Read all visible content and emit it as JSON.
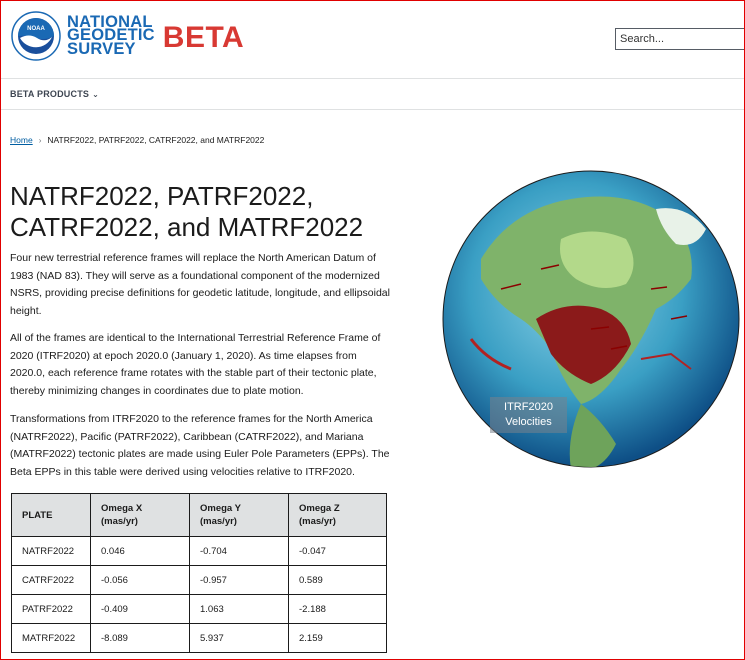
{
  "header": {
    "org_lines": [
      "NATIONAL",
      "GEODETIC",
      "SURVEY"
    ],
    "beta_label": "BETA",
    "seal_text": "NOAA",
    "search_placeholder": "Search..."
  },
  "nav": {
    "items": [
      {
        "label": "BETA PRODUCTS",
        "icon": "chevron-down-icon"
      }
    ]
  },
  "breadcrumb": {
    "home": "Home",
    "current": "NATRF2022, PATRF2022, CATRF2022, and MATRF2022"
  },
  "main": {
    "title": "NATRF2022, PATRF2022, CATRF2022, and MATRF2022",
    "paragraphs": [
      "Four new terrestrial reference frames will replace the North American Datum of 1983 (NAD 83). They will serve as a foundational component of the modernized NSRS, providing precise definitions for geodetic latitude, longitude, and ellipsoidal height.",
      "All of the frames are identical to the International Terrestrial Reference Frame of 2020 (ITRF2020) at epoch 2020.0 (January 1, 2020). As time elapses from 2020.0, each reference frame rotates with the stable part of their tectonic plate, thereby minimizing changes in coordinates due to plate motion.",
      "Transformations from ITRF2020 to the reference frames for the North America (NATRF2022), Pacific (PATRF2022), Caribbean (CATRF2022), and Mariana (MATRF2022) tectonic plates are made using Euler Pole Parameters (EPPs). The Beta EPPs in this table were derived using velocities relative to ITRF2020."
    ],
    "globe_label": "ITRF2020 Velocities"
  },
  "table": {
    "headers": [
      {
        "label": "PLATE",
        "unit": ""
      },
      {
        "label": "Omega X",
        "unit": "(mas/yr)"
      },
      {
        "label": "Omega Y",
        "unit": "(mas/yr)"
      },
      {
        "label": "Omega Z",
        "unit": "(mas/yr)"
      }
    ],
    "rows": [
      [
        "NATRF2022",
        "0.046",
        "-0.704",
        "-0.047"
      ],
      [
        "CATRF2022",
        "-0.056",
        "-0.957",
        "0.589"
      ],
      [
        "PATRF2022",
        "-0.409",
        "1.063",
        "-2.188"
      ],
      [
        "MATRF2022",
        "-8.089",
        "5.937",
        "2.159"
      ]
    ]
  },
  "colors": {
    "brand_blue": "#1a69b4",
    "beta_red": "#d83933",
    "link": "#005ea2",
    "table_header": "#dfe1e2"
  }
}
